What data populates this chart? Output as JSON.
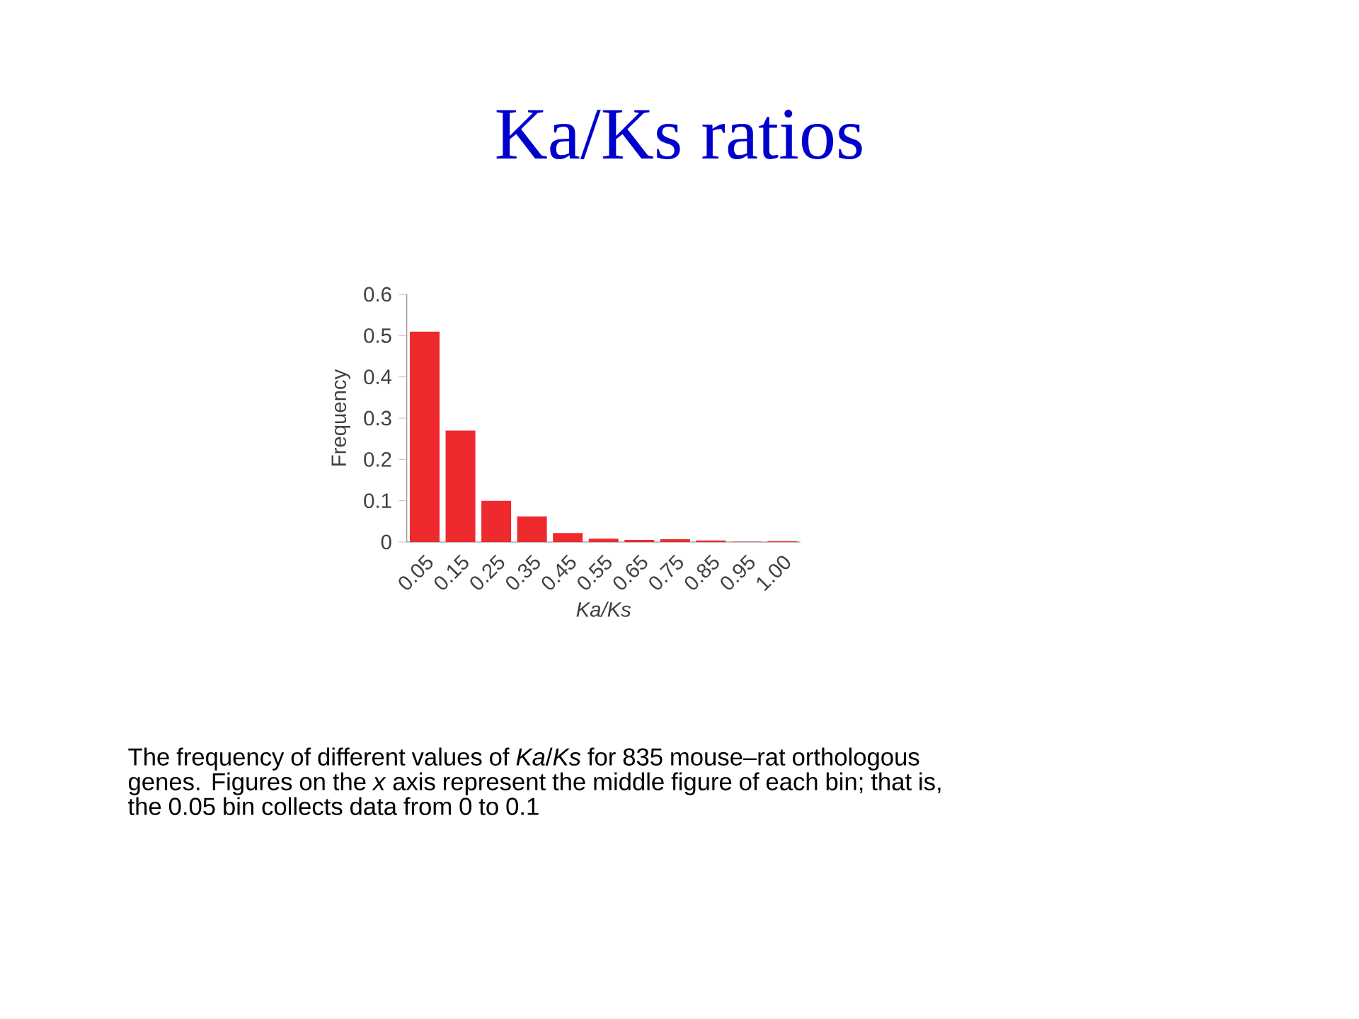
{
  "chart_data": {
    "type": "bar",
    "title": "Ka/Ks ratios",
    "xlabel": "Ka/Ks",
    "ylabel": "Frequency",
    "categories": [
      "0.05",
      "0.15",
      "0.25",
      "0.35",
      "0.45",
      "0.55",
      "0.65",
      "0.75",
      "0.85",
      "0.95",
      "1.00"
    ],
    "values": [
      0.51,
      0.27,
      0.1,
      0.062,
      0.022,
      0.008,
      0.005,
      0.007,
      0.004,
      0.001,
      0.002
    ],
    "color": "#ee2a2e",
    "ylim": [
      0,
      0.6
    ],
    "yticks": [
      0,
      0.1,
      0.2,
      0.3,
      0.4,
      0.5,
      0.6
    ],
    "annotations": [
      "The frequency of different values of *Ka*/*Ks* for 835 mouse–rat orthologous genes. Figures on the *x* axis represent the middle figure of each bin; that is, the 0.05 bin collects data from 0 to 0.1"
    ]
  }
}
